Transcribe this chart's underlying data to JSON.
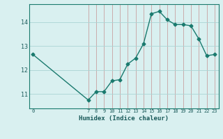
{
  "xlabel": "Humidex (Indice chaleur)",
  "x_values": [
    0,
    7,
    8,
    9,
    10,
    11,
    12,
    13,
    14,
    15,
    16,
    17,
    18,
    19,
    20,
    21,
    22,
    23
  ],
  "y_values": [
    12.65,
    10.75,
    11.1,
    11.1,
    11.55,
    11.6,
    12.25,
    12.5,
    13.1,
    14.35,
    14.45,
    14.1,
    13.9,
    13.9,
    13.85,
    13.3,
    12.6,
    12.65
  ],
  "line_color": "#1a7a6e",
  "bg_color": "#d9f0f0",
  "hgrid_color": "#aad4d4",
  "vgrid_color": "#c8a0a0",
  "ylim": [
    10.4,
    14.75
  ],
  "yticks": [
    11,
    12,
    13,
    14
  ],
  "xlim": [
    -0.5,
    23.5
  ],
  "xticks_labeled": [
    0,
    7,
    8,
    9,
    10,
    11,
    12,
    13,
    14,
    15,
    16,
    17,
    18,
    19,
    20,
    21,
    22,
    23
  ],
  "xticks_grid": [
    7,
    8,
    9,
    10,
    11,
    12,
    13,
    14,
    15,
    16,
    17,
    18,
    19,
    20,
    21,
    22,
    23
  ],
  "marker": "D",
  "marker_size": 2.5,
  "line_width": 1.0
}
